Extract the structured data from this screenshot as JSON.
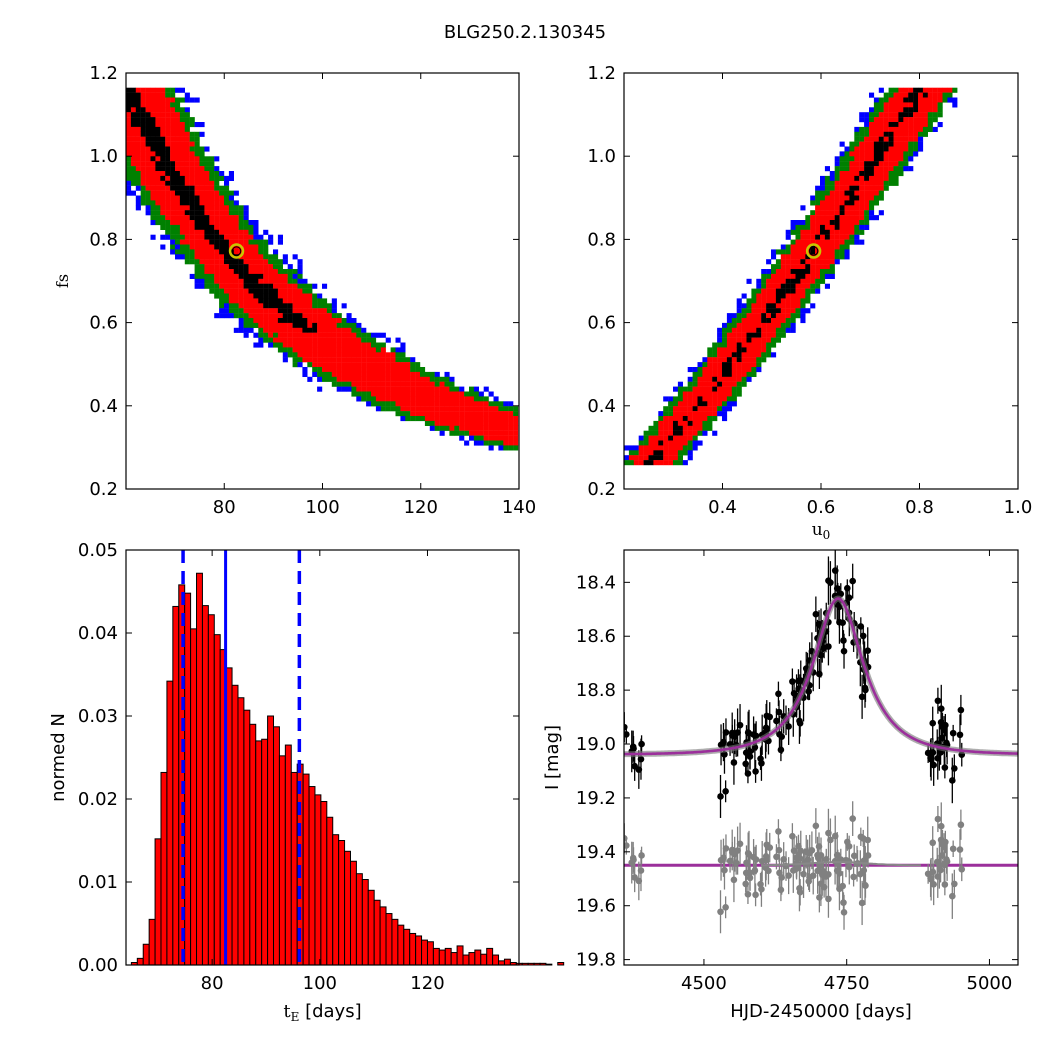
{
  "figure": {
    "title": "BLG250.2.130345"
  },
  "chart_data": [
    {
      "id": "tE_fs",
      "type": "heatmap",
      "title": "",
      "xlabel": "",
      "ylabel": "f_s",
      "xlim": [
        60,
        140
      ],
      "ylim": [
        0.2,
        1.2
      ],
      "xticks": [
        "80",
        "100",
        "120",
        "140"
      ],
      "yticks": [
        "0.2",
        "0.4",
        "0.6",
        "0.8",
        "1.0",
        "1.2"
      ],
      "levels": [
        "black",
        "red",
        "green",
        "blue"
      ],
      "ridge": {
        "x_start": 73,
        "x_end": 132,
        "fs_start": 1.16,
        "fs_end": 0.28
      },
      "best_fit": {
        "x": 82.5,
        "y": 0.772
      }
    },
    {
      "id": "u0_fs",
      "type": "heatmap",
      "title": "",
      "xlabel": "u_0",
      "ylabel": "",
      "xlim": [
        0.2,
        1.0
      ],
      "ylim": [
        0.2,
        1.2
      ],
      "xticks": [
        "0.4",
        "0.6",
        "0.8",
        "1.0"
      ],
      "yticks": [
        "0.2",
        "0.4",
        "0.6",
        "0.8",
        "1.0",
        "1.2"
      ],
      "levels": [
        "black",
        "red",
        "green",
        "blue"
      ],
      "ridge": {
        "x_start": 0.285,
        "x_end": 0.76,
        "fs_start": 0.27,
        "fs_end": 1.16
      },
      "best_fit": {
        "x": 0.585,
        "y": 0.772
      }
    },
    {
      "id": "tE_hist",
      "type": "bar",
      "title": "",
      "xlabel": "t_E [days]",
      "ylabel": "normed N",
      "xlim": [
        64,
        137
      ],
      "ylim": [
        0,
        0.05
      ],
      "xticks": [
        "80",
        "100",
        "120"
      ],
      "yticks": [
        "0.00",
        "0.01",
        "0.02",
        "0.03",
        "0.04",
        "0.05"
      ],
      "bin_start": 65,
      "bin_width": 1.1,
      "values": [
        0.0003,
        0.0008,
        0.0025,
        0.0055,
        0.0152,
        0.0232,
        0.0342,
        0.0432,
        0.0458,
        0.0448,
        0.0405,
        0.0472,
        0.0433,
        0.0422,
        0.0398,
        0.038,
        0.0358,
        0.0337,
        0.0322,
        0.0307,
        0.029,
        0.027,
        0.0272,
        0.03,
        0.0287,
        0.0252,
        0.0265,
        0.0232,
        0.0242,
        0.023,
        0.0215,
        0.0205,
        0.0197,
        0.0178,
        0.0157,
        0.015,
        0.0137,
        0.0125,
        0.011,
        0.0103,
        0.009,
        0.0078,
        0.007,
        0.0062,
        0.0055,
        0.0048,
        0.0043,
        0.0038,
        0.0035,
        0.003,
        0.0028,
        0.002,
        0.0018,
        0.002,
        0.0015,
        0.0023,
        0.0012,
        0.0015,
        0.0018,
        0.0013,
        0.002,
        0.0012,
        0.0005,
        0.0007,
        0.0003,
        0.0002,
        0.0002,
        0.0002,
        0.0002,
        0.0002,
        0.0001,
        0.0,
        0.0003
      ],
      "vlines": {
        "median": 82.5,
        "lower": 74.6,
        "upper": 96.2
      }
    },
    {
      "id": "lightcurve",
      "type": "scatter",
      "title": "",
      "xlabel": "HJD-2450000 [days]",
      "ylabel": "I [mag]",
      "xlim": [
        4360,
        5050
      ],
      "ylim": [
        19.82,
        18.28
      ],
      "xticks": [
        "4500",
        "4750",
        "5000"
      ],
      "yticks": [
        "18.4",
        "18.6",
        "18.8",
        "19.0",
        "19.2",
        "19.4",
        "19.6",
        "19.8"
      ],
      "model": {
        "t0": 4735,
        "baseline": 19.04,
        "peak": 18.46,
        "tE": 82.5,
        "u0": 0.585
      },
      "residual_baseline": 19.45,
      "seasons": [
        [
          4360,
          4395
        ],
        [
          4525,
          4790
        ],
        [
          4890,
          4955
        ]
      ],
      "data_color": "#000000",
      "residual_color": "#808080",
      "model_color": "#9b2f9b"
    }
  ]
}
